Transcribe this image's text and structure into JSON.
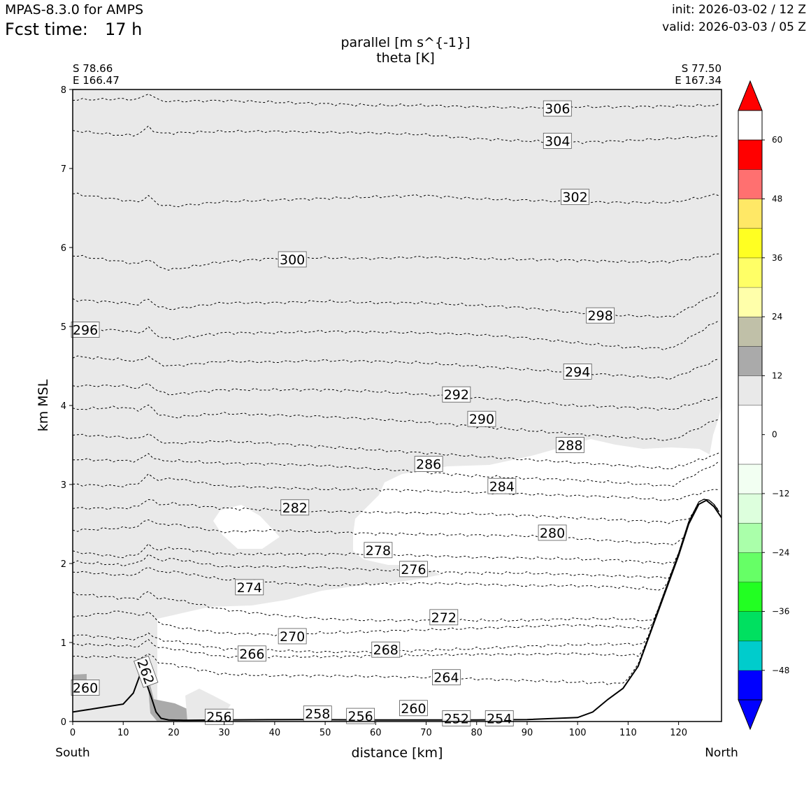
{
  "header": {
    "model": "MPAS-8.3.0 for AMPS",
    "fcst_label": "Fcst time:",
    "fcst_value": "17 h",
    "init": "init: 2026-03-02 / 12 Z",
    "valid": "valid: 2026-03-03 / 05 Z"
  },
  "chart_data": {
    "type": "contour",
    "title_line1": "parallel [m s^{-1}]",
    "title_line2": "theta [K]",
    "xlabel": "distance [km]",
    "ylabel": "km MSL",
    "xlim": [
      0,
      128.5
    ],
    "ylim": [
      0,
      8
    ],
    "xticks": [
      "0",
      "10",
      "20",
      "30",
      "40",
      "50",
      "60",
      "70",
      "80",
      "90",
      "100",
      "110",
      "120"
    ],
    "yticks": [
      "0",
      "1",
      "2",
      "3",
      "4",
      "5",
      "6",
      "7",
      "8"
    ],
    "left_end": {
      "lat": "S 78.66",
      "lon": "E 166.47",
      "dir": "South"
    },
    "right_end": {
      "lat": "S 77.50",
      "lon": "E 167.34",
      "dir": "North"
    },
    "colorbar": {
      "ticks": [
        "60",
        "48",
        "36",
        "24",
        "12",
        "0",
        "−12",
        "−24",
        "−36",
        "−48"
      ],
      "range": [
        -54,
        66
      ],
      "bins": [
        {
          "lo": -54,
          "hi": -48,
          "color": "#0000ff"
        },
        {
          "lo": -48,
          "hi": -42,
          "color": "#00cccc"
        },
        {
          "lo": -42,
          "hi": -36,
          "color": "#00e060"
        },
        {
          "lo": -36,
          "hi": -30,
          "color": "#22ff22"
        },
        {
          "lo": -30,
          "hi": -24,
          "color": "#66ff66"
        },
        {
          "lo": -24,
          "hi": -18,
          "color": "#aaffaa"
        },
        {
          "lo": -18,
          "hi": -12,
          "color": "#ddffdd"
        },
        {
          "lo": -12,
          "hi": -6,
          "color": "#f2fff2"
        },
        {
          "lo": -6,
          "hi": 6,
          "color": "#ffffff"
        },
        {
          "lo": 6,
          "hi": 12,
          "color": "#e9e9e9"
        },
        {
          "lo": 12,
          "hi": 18,
          "color": "#aaaaaa"
        },
        {
          "lo": 18,
          "hi": 24,
          "color": "#c0c0a8"
        },
        {
          "lo": 24,
          "hi": 30,
          "color": "#ffffaa"
        },
        {
          "lo": 30,
          "hi": 36,
          "color": "#ffff66"
        },
        {
          "lo": 36,
          "hi": 42,
          "color": "#ffff22"
        },
        {
          "lo": 42,
          "hi": 48,
          "color": "#ffe866"
        },
        {
          "lo": 48,
          "hi": 54,
          "color": "#ff7070"
        },
        {
          "lo": 54,
          "hi": 60,
          "color": "#ff0000"
        }
      ],
      "under_color": "#0000ff",
      "over_color": "#ff0000"
    },
    "terrain": [
      [
        0,
        0.12
      ],
      [
        5,
        0.17
      ],
      [
        10,
        0.22
      ],
      [
        12,
        0.36
      ],
      [
        13.5,
        0.62
      ],
      [
        14.5,
        0.5
      ],
      [
        15.5,
        0.32
      ],
      [
        16.5,
        0.12
      ],
      [
        17.5,
        0.04
      ],
      [
        19,
        0.02
      ],
      [
        22,
        0.015
      ],
      [
        30,
        0.02
      ],
      [
        45,
        0.025
      ],
      [
        60,
        0.02
      ],
      [
        80,
        0.02
      ],
      [
        90,
        0.025
      ],
      [
        100,
        0.05
      ],
      [
        103,
        0.12
      ],
      [
        106,
        0.28
      ],
      [
        109,
        0.42
      ],
      [
        112,
        0.7
      ],
      [
        116,
        1.4
      ],
      [
        120,
        2.1
      ],
      [
        122,
        2.5
      ],
      [
        124,
        2.75
      ],
      [
        125.5,
        2.8
      ],
      [
        127,
        2.72
      ],
      [
        128.5,
        2.58
      ]
    ],
    "theta_contours": [
      {
        "value": 306,
        "y": [
          7.87,
          7.88,
          7.85,
          7.86,
          7.84,
          7.82,
          7.8,
          7.8,
          7.78,
          7.77,
          7.78,
          7.78,
          7.79,
          7.8
        ]
      },
      {
        "value": 304,
        "y": [
          7.48,
          7.42,
          7.45,
          7.47,
          7.47,
          7.46,
          7.45,
          7.43,
          7.38,
          7.35,
          7.33,
          7.35,
          7.38,
          7.42
        ]
      },
      {
        "value": 302,
        "y": [
          6.68,
          6.6,
          6.52,
          6.58,
          6.6,
          6.62,
          6.64,
          6.66,
          6.62,
          6.6,
          6.58,
          6.57,
          6.57,
          6.68
        ]
      },
      {
        "value": 300,
        "y": [
          5.9,
          5.82,
          5.72,
          5.82,
          5.86,
          5.87,
          5.86,
          5.88,
          5.86,
          5.85,
          5.84,
          5.82,
          5.82,
          5.92
        ]
      },
      {
        "value": 298,
        "y": [
          5.34,
          5.3,
          5.22,
          5.3,
          5.3,
          5.32,
          5.3,
          5.3,
          5.27,
          5.24,
          5.18,
          5.14,
          5.12,
          5.45
        ]
      },
      {
        "value": 296,
        "y": [
          4.98,
          4.95,
          4.84,
          4.92,
          4.92,
          4.94,
          4.93,
          4.92,
          4.9,
          4.86,
          4.8,
          4.74,
          4.72,
          5.1
        ]
      },
      {
        "value": 294,
        "y": [
          4.62,
          4.58,
          4.5,
          4.56,
          4.55,
          4.57,
          4.56,
          4.54,
          4.5,
          4.46,
          4.42,
          4.38,
          4.34,
          4.6
        ]
      },
      {
        "value": 292,
        "y": [
          4.25,
          4.25,
          4.14,
          4.2,
          4.2,
          4.2,
          4.18,
          4.14,
          4.1,
          4.06,
          4.0,
          3.98,
          3.95,
          4.12
        ]
      },
      {
        "value": 290,
        "y": [
          3.95,
          3.98,
          3.85,
          3.9,
          3.88,
          3.86,
          3.83,
          3.79,
          3.74,
          3.69,
          3.64,
          3.6,
          3.56,
          3.85
        ]
      },
      {
        "value": 288,
        "y": [
          3.63,
          3.6,
          3.52,
          3.55,
          3.52,
          3.48,
          3.44,
          3.4,
          3.36,
          3.32,
          3.28,
          3.24,
          3.2,
          3.4
        ]
      },
      {
        "value": 286,
        "y": [
          3.32,
          3.3,
          3.3,
          3.27,
          3.26,
          3.24,
          3.2,
          3.16,
          3.11,
          3.08,
          3.06,
          3.02,
          2.98,
          3.3
        ]
      },
      {
        "value": 284,
        "y": [
          3.0,
          2.98,
          3.08,
          2.98,
          2.96,
          2.94,
          2.94,
          2.92,
          2.9,
          2.88,
          2.86,
          2.84,
          2.8,
          2.96
        ]
      },
      {
        "value": 282,
        "y": [
          2.7,
          2.7,
          2.76,
          2.7,
          2.68,
          2.66,
          2.65,
          2.64,
          2.63,
          2.61,
          2.58,
          2.55,
          2.52,
          2.68
        ]
      },
      {
        "value": 280,
        "y": [
          2.42,
          2.45,
          2.5,
          2.4,
          2.42,
          2.4,
          2.38,
          2.37,
          2.36,
          2.35,
          2.32,
          2.28,
          2.24,
          2.5
        ]
      },
      {
        "value": 278,
        "y": [
          2.15,
          2.08,
          2.2,
          2.12,
          2.12,
          2.12,
          2.12,
          2.1,
          2.08,
          2.07,
          2.06,
          2.04,
          2.0,
          2.2
        ]
      },
      {
        "value": 276,
        "y": [
          2.02,
          1.98,
          2.06,
          1.96,
          1.96,
          1.95,
          1.92,
          1.9,
          1.88,
          1.88,
          1.86,
          1.84,
          1.82,
          1.92
        ]
      },
      {
        "value": 274,
        "y": [
          1.9,
          1.85,
          1.9,
          1.8,
          1.76,
          1.72,
          1.74,
          1.75,
          1.74,
          1.72,
          1.72,
          1.7,
          1.66,
          1.74
        ]
      },
      {
        "value": 272,
        "y": [
          1.62,
          1.56,
          1.55,
          1.42,
          1.35,
          1.3,
          1.28,
          1.28,
          1.28,
          1.28,
          1.3,
          1.3,
          1.26,
          1.3
        ]
      },
      {
        "value": 270,
        "y": [
          1.32,
          1.4,
          1.2,
          1.12,
          1.1,
          1.12,
          1.14,
          1.16,
          1.18,
          1.2,
          1.22,
          1.2,
          1.16,
          1.2
        ]
      },
      {
        "value": 268,
        "y": [
          1.1,
          1.05,
          1.02,
          0.92,
          0.9,
          0.88,
          0.88,
          0.9,
          0.92,
          0.95,
          0.97,
          0.98,
          0.98,
          1.02
        ]
      },
      {
        "value": 266,
        "y": [
          0.98,
          0.96,
          0.92,
          0.82,
          0.82,
          0.82,
          0.83,
          0.84,
          0.85,
          0.85,
          0.86,
          0.84,
          0.84,
          0.9
        ]
      },
      {
        "value": 264,
        "y": [
          0.82,
          0.82,
          0.72,
          0.6,
          0.58,
          0.58,
          0.57,
          0.56,
          0.54,
          0.52,
          0.5,
          0.48,
          0.48,
          0.52
        ]
      }
    ],
    "theta_labels": [
      {
        "text": "306",
        "x": 96,
        "y": 7.76
      },
      {
        "text": "304",
        "x": 96,
        "y": 7.35
      },
      {
        "text": "302",
        "x": 99.5,
        "y": 6.64
      },
      {
        "text": "300",
        "x": 43.5,
        "y": 5.85
      },
      {
        "text": "298",
        "x": 104.5,
        "y": 5.14
      },
      {
        "text": "296",
        "x": 2.5,
        "y": 4.96
      },
      {
        "text": "294",
        "x": 100,
        "y": 4.43
      },
      {
        "text": "292",
        "x": 76,
        "y": 4.14
      },
      {
        "text": "290",
        "x": 81,
        "y": 3.83
      },
      {
        "text": "288",
        "x": 98.5,
        "y": 3.5
      },
      {
        "text": "286",
        "x": 70.5,
        "y": 3.26
      },
      {
        "text": "284",
        "x": 85,
        "y": 2.98
      },
      {
        "text": "282",
        "x": 44,
        "y": 2.71
      },
      {
        "text": "280",
        "x": 95,
        "y": 2.39
      },
      {
        "text": "278",
        "x": 60.5,
        "y": 2.17
      },
      {
        "text": "276",
        "x": 67.5,
        "y": 1.93
      },
      {
        "text": "274",
        "x": 35,
        "y": 1.7
      },
      {
        "text": "272",
        "x": 73.5,
        "y": 1.32
      },
      {
        "text": "270",
        "x": 43.5,
        "y": 1.08
      },
      {
        "text": "268",
        "x": 62,
        "y": 0.91
      },
      {
        "text": "266",
        "x": 35.5,
        "y": 0.86
      },
      {
        "text": "264",
        "x": 74,
        "y": 0.56
      },
      {
        "text": "262",
        "x": 14.5,
        "y": 0.63
      },
      {
        "text": "260",
        "x": 2.5,
        "y": 0.43
      },
      {
        "text": "260",
        "x": 67.5,
        "y": 0.17
      },
      {
        "text": "258",
        "x": 48.5,
        "y": 0.1
      },
      {
        "text": "256",
        "x": 29,
        "y": 0.06
      },
      {
        "text": "256",
        "x": 57,
        "y": 0.07
      },
      {
        "text": "252",
        "x": 76,
        "y": 0.04
      },
      {
        "text": "254",
        "x": 84.5,
        "y": 0.04
      }
    ]
  }
}
